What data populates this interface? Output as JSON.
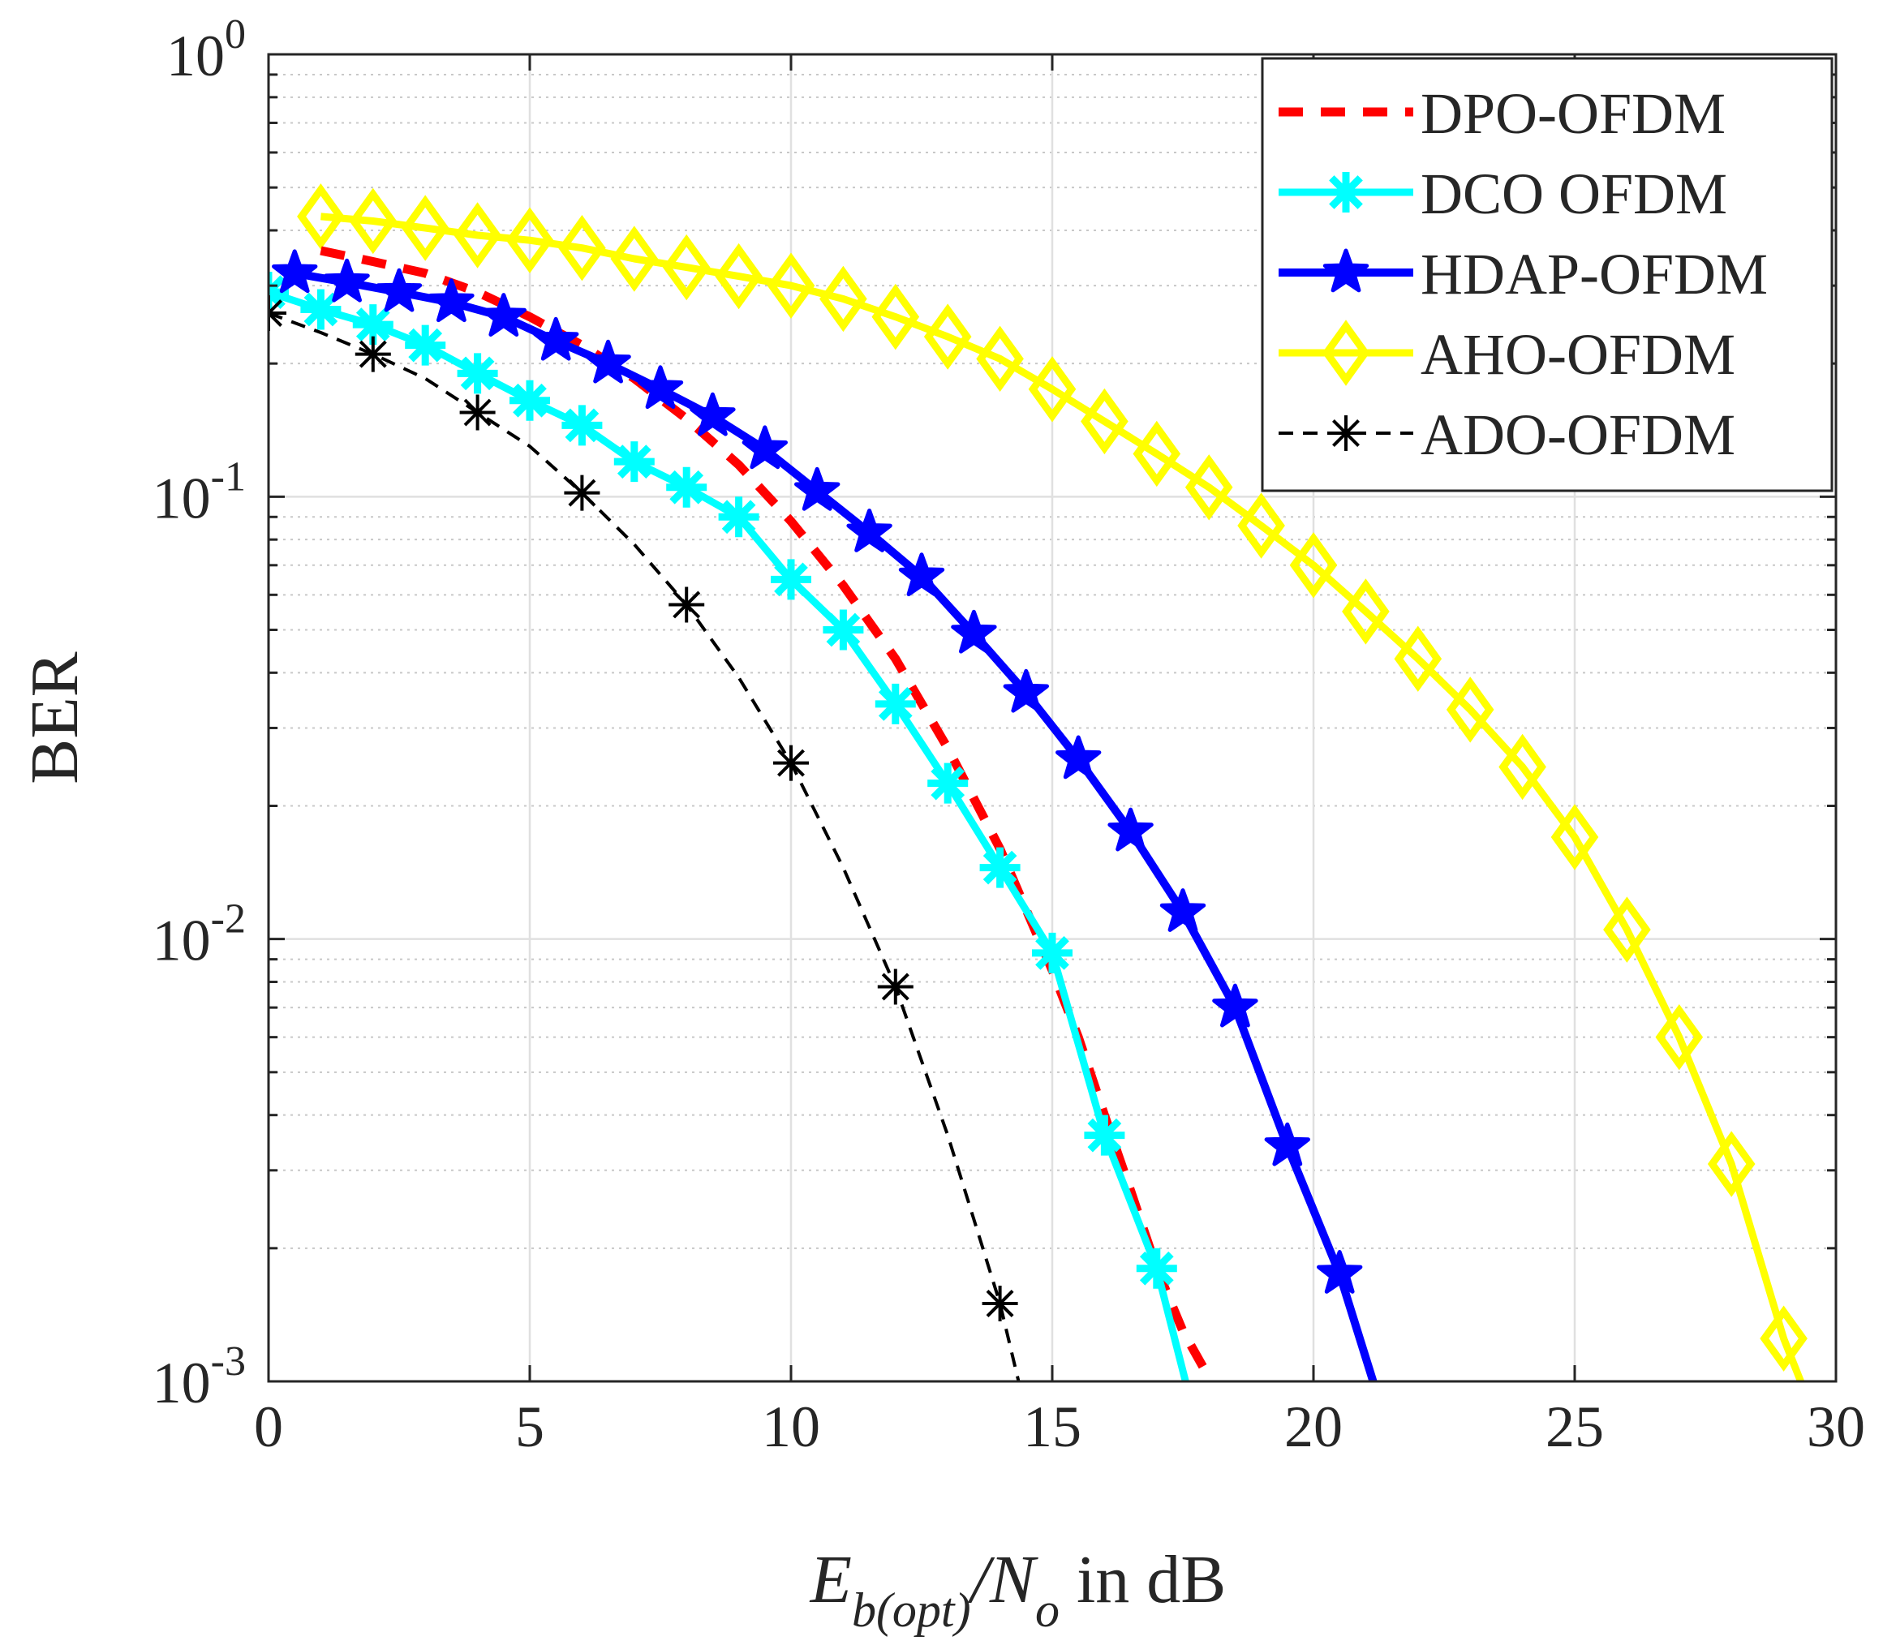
{
  "chart_data": {
    "type": "line",
    "title": "",
    "xlabel": {
      "main": "E",
      "sub": "b(opt)",
      "sep": "/N",
      "sub2": "o",
      "tail": " in dB"
    },
    "ylabel": "BER",
    "xlim": [
      0,
      30
    ],
    "ylim": [
      0.001,
      1
    ],
    "yscale": "log",
    "grid": true,
    "legend_position": "top-right",
    "x_ticks": [
      0,
      5,
      10,
      15,
      20,
      25,
      30
    ],
    "x_tick_labels": [
      "0",
      "5",
      "10",
      "15",
      "20",
      "25",
      "30"
    ],
    "y_ticks": [
      {
        "value": 1,
        "base": "10",
        "exp": "0"
      },
      {
        "value": 0.1,
        "base": "10",
        "exp": "-1"
      },
      {
        "value": 0.01,
        "base": "10",
        "exp": "-2"
      },
      {
        "value": 0.001,
        "base": "10",
        "exp": "-3"
      }
    ],
    "series": [
      {
        "name": "DPO-OFDM",
        "color": "#ff0000",
        "dash": "dashed",
        "width": 11,
        "marker": "none",
        "x": [
          1,
          2,
          3,
          4,
          5,
          6,
          7,
          8,
          9,
          10,
          11,
          12,
          13,
          14,
          15,
          15.5,
          16,
          16.5,
          17,
          17.5,
          18,
          18.1
        ],
        "y": [
          0.36,
          0.34,
          0.32,
          0.29,
          0.255,
          0.22,
          0.185,
          0.15,
          0.118,
          0.088,
          0.063,
          0.043,
          0.027,
          0.016,
          0.0085,
          0.006,
          0.004,
          0.0027,
          0.0018,
          0.0013,
          0.00102,
          0.00095
        ]
      },
      {
        "name": "DCO OFDM",
        "color": "#00ffff",
        "dash": "solid",
        "width": 9,
        "marker": "asterisk",
        "x": [
          0,
          1,
          2,
          3,
          4,
          5,
          6,
          7,
          8,
          9,
          10,
          11,
          12,
          13,
          14,
          15,
          16,
          17,
          17.6
        ],
        "y": [
          0.29,
          0.265,
          0.245,
          0.22,
          0.19,
          0.165,
          0.145,
          0.12,
          0.105,
          0.09,
          0.065,
          0.05,
          0.034,
          0.0225,
          0.0145,
          0.0093,
          0.0036,
          0.0018,
          0.00095
        ],
        "marker_x": [
          0,
          1,
          2,
          3,
          4,
          5,
          6,
          7,
          8,
          9,
          10,
          11,
          12,
          13,
          14,
          15,
          16,
          17
        ]
      },
      {
        "name": "HDAP-OFDM",
        "color": "#0000ff",
        "dash": "solid",
        "width": 10,
        "marker": "star",
        "x": [
          0.5,
          1.5,
          2.5,
          3.5,
          4.5,
          5.5,
          6.5,
          7.5,
          8.5,
          9.5,
          10.5,
          11.5,
          12.5,
          13.5,
          14.5,
          15.5,
          16.5,
          17.5,
          18.5,
          19.5,
          20.5,
          21.2
        ],
        "y": [
          0.32,
          0.305,
          0.29,
          0.275,
          0.255,
          0.225,
          0.2,
          0.175,
          0.152,
          0.128,
          0.103,
          0.083,
          0.066,
          0.049,
          0.036,
          0.0255,
          0.0175,
          0.0115,
          0.007,
          0.0034,
          0.00175,
          0.00095
        ],
        "marker_x": [
          0.5,
          1.5,
          2.5,
          3.5,
          4.5,
          5.5,
          6.5,
          7.5,
          8.5,
          9.5,
          10.5,
          11.5,
          12.5,
          13.5,
          14.5,
          15.5,
          16.5,
          17.5,
          18.5,
          19.5,
          20.5
        ]
      },
      {
        "name": "AHO-OFDM",
        "color": "#ffff00",
        "dash": "solid",
        "width": 9,
        "marker": "diamond",
        "x": [
          1,
          2,
          3,
          4,
          5,
          6,
          7,
          8,
          9,
          10,
          11,
          12,
          13,
          14,
          15,
          16,
          17,
          18,
          19,
          20,
          21,
          22,
          23,
          24,
          25,
          26,
          27,
          28,
          29,
          29.4
        ],
        "y": [
          0.43,
          0.42,
          0.405,
          0.39,
          0.38,
          0.365,
          0.345,
          0.33,
          0.315,
          0.3,
          0.28,
          0.255,
          0.23,
          0.205,
          0.175,
          0.148,
          0.125,
          0.105,
          0.086,
          0.07,
          0.055,
          0.043,
          0.033,
          0.0245,
          0.017,
          0.0105,
          0.006,
          0.0031,
          0.00125,
          0.00095
        ],
        "marker_x": [
          1,
          2,
          3,
          4,
          5,
          6,
          7,
          8,
          9,
          10,
          11,
          12,
          13,
          14,
          15,
          16,
          17,
          18,
          19,
          20,
          21,
          22,
          23,
          24,
          25,
          26,
          27,
          28,
          29
        ]
      },
      {
        "name": "ADO-OFDM",
        "color": "#000000",
        "dash": "dashdot",
        "width": 4,
        "marker": "asterisk",
        "x": [
          0,
          1,
          2,
          3,
          4,
          5,
          6,
          7,
          8,
          9,
          10,
          11,
          12,
          13,
          14,
          14.4
        ],
        "y": [
          0.26,
          0.235,
          0.21,
          0.185,
          0.155,
          0.13,
          0.102,
          0.078,
          0.057,
          0.039,
          0.025,
          0.0145,
          0.0078,
          0.0036,
          0.0015,
          0.00095
        ],
        "marker_x": [
          0,
          2,
          4,
          6,
          8,
          10,
          12,
          14
        ]
      }
    ]
  }
}
